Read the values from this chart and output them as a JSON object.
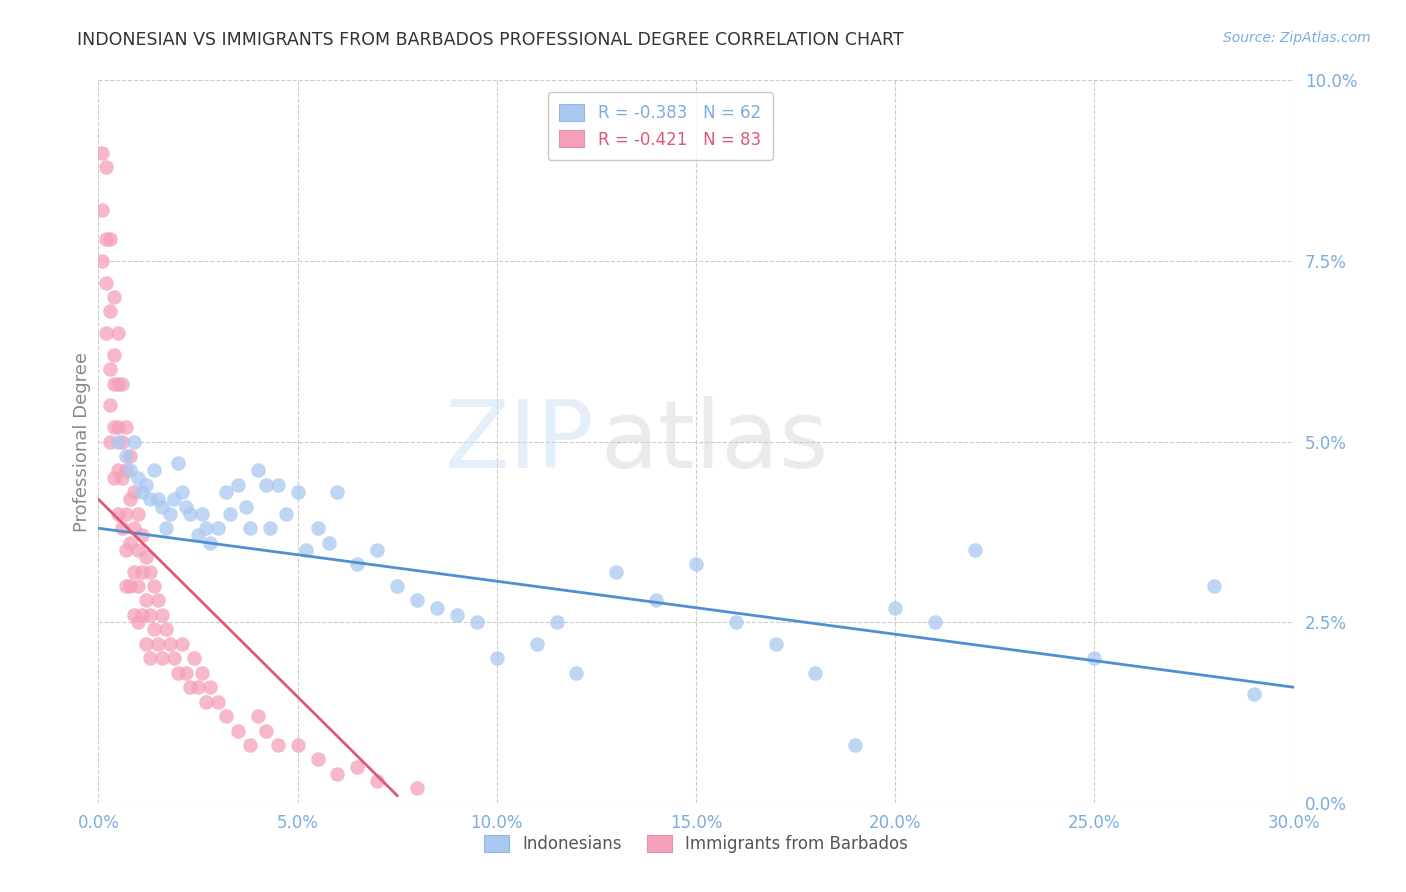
{
  "title": "INDONESIAN VS IMMIGRANTS FROM BARBADOS PROFESSIONAL DEGREE CORRELATION CHART",
  "source": "Source: ZipAtlas.com",
  "ylabel": "Professional Degree",
  "watermark_zip": "ZIP",
  "watermark_atlas": "atlas",
  "xlim": [
    0.0,
    0.3
  ],
  "ylim": [
    0.0,
    0.1
  ],
  "xticks": [
    0.0,
    0.05,
    0.1,
    0.15,
    0.2,
    0.25,
    0.3
  ],
  "yticks": [
    0.0,
    0.025,
    0.05,
    0.075,
    0.1
  ],
  "indonesian_color": "#a8c8f0",
  "barbados_color": "#f5a0b8",
  "indonesian_line_color": "#5090d0",
  "barbados_line_color": "#e05878",
  "background_color": "#ffffff",
  "grid_color": "#cccccc",
  "title_color": "#333333",
  "tick_label_color": "#7aade0",
  "ylabel_color": "#888888",
  "indonesian_x": [
    0.005,
    0.007,
    0.008,
    0.009,
    0.01,
    0.011,
    0.012,
    0.013,
    0.014,
    0.015,
    0.016,
    0.017,
    0.018,
    0.019,
    0.02,
    0.021,
    0.022,
    0.023,
    0.025,
    0.026,
    0.027,
    0.028,
    0.03,
    0.032,
    0.033,
    0.035,
    0.037,
    0.038,
    0.04,
    0.042,
    0.043,
    0.045,
    0.047,
    0.05,
    0.052,
    0.055,
    0.058,
    0.06,
    0.065,
    0.07,
    0.075,
    0.08,
    0.085,
    0.09,
    0.095,
    0.1,
    0.11,
    0.115,
    0.12,
    0.13,
    0.14,
    0.15,
    0.16,
    0.17,
    0.18,
    0.19,
    0.2,
    0.21,
    0.22,
    0.25,
    0.28,
    0.29
  ],
  "indonesian_y": [
    0.05,
    0.048,
    0.046,
    0.05,
    0.045,
    0.043,
    0.044,
    0.042,
    0.046,
    0.042,
    0.041,
    0.038,
    0.04,
    0.042,
    0.047,
    0.043,
    0.041,
    0.04,
    0.037,
    0.04,
    0.038,
    0.036,
    0.038,
    0.043,
    0.04,
    0.044,
    0.041,
    0.038,
    0.046,
    0.044,
    0.038,
    0.044,
    0.04,
    0.043,
    0.035,
    0.038,
    0.036,
    0.043,
    0.033,
    0.035,
    0.03,
    0.028,
    0.027,
    0.026,
    0.025,
    0.02,
    0.022,
    0.025,
    0.018,
    0.032,
    0.028,
    0.033,
    0.025,
    0.022,
    0.018,
    0.008,
    0.027,
    0.025,
    0.035,
    0.02,
    0.03,
    0.015
  ],
  "barbados_x": [
    0.001,
    0.001,
    0.001,
    0.002,
    0.002,
    0.002,
    0.002,
    0.003,
    0.003,
    0.003,
    0.003,
    0.003,
    0.004,
    0.004,
    0.004,
    0.004,
    0.004,
    0.005,
    0.005,
    0.005,
    0.005,
    0.005,
    0.006,
    0.006,
    0.006,
    0.006,
    0.007,
    0.007,
    0.007,
    0.007,
    0.007,
    0.008,
    0.008,
    0.008,
    0.008,
    0.009,
    0.009,
    0.009,
    0.009,
    0.01,
    0.01,
    0.01,
    0.01,
    0.011,
    0.011,
    0.011,
    0.012,
    0.012,
    0.012,
    0.013,
    0.013,
    0.013,
    0.014,
    0.014,
    0.015,
    0.015,
    0.016,
    0.016,
    0.017,
    0.018,
    0.019,
    0.02,
    0.021,
    0.022,
    0.023,
    0.024,
    0.025,
    0.026,
    0.027,
    0.028,
    0.03,
    0.032,
    0.035,
    0.038,
    0.04,
    0.042,
    0.045,
    0.05,
    0.055,
    0.06,
    0.065,
    0.07,
    0.08
  ],
  "barbados_y": [
    0.09,
    0.082,
    0.075,
    0.088,
    0.078,
    0.072,
    0.065,
    0.078,
    0.068,
    0.06,
    0.055,
    0.05,
    0.07,
    0.062,
    0.058,
    0.052,
    0.045,
    0.065,
    0.058,
    0.052,
    0.046,
    0.04,
    0.058,
    0.05,
    0.045,
    0.038,
    0.052,
    0.046,
    0.04,
    0.035,
    0.03,
    0.048,
    0.042,
    0.036,
    0.03,
    0.043,
    0.038,
    0.032,
    0.026,
    0.04,
    0.035,
    0.03,
    0.025,
    0.037,
    0.032,
    0.026,
    0.034,
    0.028,
    0.022,
    0.032,
    0.026,
    0.02,
    0.03,
    0.024,
    0.028,
    0.022,
    0.026,
    0.02,
    0.024,
    0.022,
    0.02,
    0.018,
    0.022,
    0.018,
    0.016,
    0.02,
    0.016,
    0.018,
    0.014,
    0.016,
    0.014,
    0.012,
    0.01,
    0.008,
    0.012,
    0.01,
    0.008,
    0.008,
    0.006,
    0.004,
    0.005,
    0.003,
    0.002
  ],
  "indo_line_x0": 0.0,
  "indo_line_x1": 0.3,
  "indo_line_y0": 0.038,
  "indo_line_y1": 0.016,
  "barb_line_x0": 0.0,
  "barb_line_x1": 0.075,
  "barb_line_y0": 0.042,
  "barb_line_y1": 0.001
}
